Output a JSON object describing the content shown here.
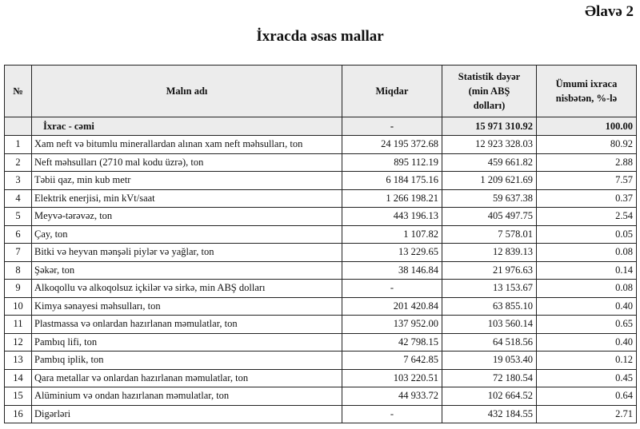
{
  "appendix": "Əlavə 2",
  "title": "İxracda əsas mallar",
  "headers": {
    "no": "№",
    "name": "Malın adı",
    "quantity": "Miqdar",
    "value": "Statistik dəyər (min ABŞ dolları)",
    "share": "Ümumi ixraca nisbətən, %-lə"
  },
  "total": {
    "name": "İxrac - cəmi",
    "quantity": "-",
    "value": "15 971 310.92",
    "share": "100.00"
  },
  "rows": [
    {
      "no": "1",
      "name": "Xam neft və bitumlu minerallardan alınan xam neft məhsulları, ton",
      "quantity": "24 195 372.68",
      "value": "12 923 328.03",
      "share": "80.92"
    },
    {
      "no": "2",
      "name": "Neft məhsulları (2710 mal kodu üzrə), ton",
      "quantity": "895 112.19",
      "value": "459 661.82",
      "share": "2.88"
    },
    {
      "no": "3",
      "name": "Təbii qaz, min kub metr",
      "quantity": "6 184 175.16",
      "value": "1 209 621.69",
      "share": "7.57"
    },
    {
      "no": "4",
      "name": "Elektrik enerjisi, min kVt/saat",
      "quantity": "1 266 198.21",
      "value": "59 637.38",
      "share": "0.37"
    },
    {
      "no": "5",
      "name": "Meyvə-tərəvəz, ton",
      "quantity": "443 196.13",
      "value": "405 497.75",
      "share": "2.54"
    },
    {
      "no": "6",
      "name": "Çay, ton",
      "quantity": "1 107.82",
      "value": "7 578.01",
      "share": "0.05"
    },
    {
      "no": "7",
      "name": "Bitki və heyvan mənşəli piylər və yağlar, ton",
      "quantity": "13 229.65",
      "value": "12 839.13",
      "share": "0.08"
    },
    {
      "no": "8",
      "name": "Şəkər, ton",
      "quantity": "38 146.84",
      "value": "21 976.63",
      "share": "0.14"
    },
    {
      "no": "9",
      "name": "Alkoqollu və alkoqolsuz içkilər və sirkə, min ABŞ dolları",
      "quantity": "-",
      "value": "13 153.67",
      "share": "0.08"
    },
    {
      "no": "10",
      "name": "Kimya sənayesi məhsulları, ton",
      "quantity": "201 420.84",
      "value": "63 855.10",
      "share": "0.40"
    },
    {
      "no": "11",
      "name": "Plastmassa və onlardan hazırlanan məmulatlar, ton",
      "quantity": "137 952.00",
      "value": "103 560.14",
      "share": "0.65"
    },
    {
      "no": "12",
      "name": "Pambıq lifi, ton",
      "quantity": "42 798.15",
      "value": "64 518.56",
      "share": "0.40"
    },
    {
      "no": "13",
      "name": "Pambıq iplik, ton",
      "quantity": "7 642.85",
      "value": "19 053.40",
      "share": "0.12"
    },
    {
      "no": "14",
      "name": "Qara metallar və onlardan hazırlanan məmulatlar, ton",
      "quantity": "103 220.51",
      "value": "72 180.54",
      "share": "0.45"
    },
    {
      "no": "15",
      "name": "Alüminium və ondan hazırlanan məmulatlar, ton",
      "quantity": "44 933.72",
      "value": "102 664.52",
      "share": "0.64"
    },
    {
      "no": "16",
      "name": "Digərləri",
      "quantity": "-",
      "value": "432 184.55",
      "share": "2.71"
    }
  ]
}
